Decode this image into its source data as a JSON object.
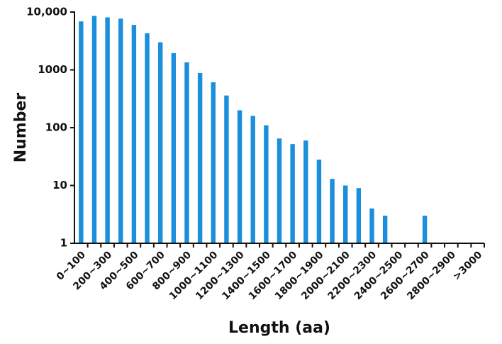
{
  "chart_data": {
    "type": "bar",
    "x_label": "Length (aa)",
    "y_label": "Number",
    "categories": [
      "0~100",
      null,
      "200~300",
      null,
      "400~500",
      null,
      "600~700",
      null,
      "800~900",
      null,
      "1000~1100",
      null,
      "1200~1300",
      null,
      "1400~1500",
      null,
      "1600~1700",
      null,
      "1800~1900",
      null,
      "2000~2100",
      null,
      "2200~2300",
      null,
      "2400~2500",
      null,
      "2600~2700",
      null,
      "2800~2900",
      null,
      ">3000"
    ],
    "values": [
      6900,
      8600,
      8100,
      7700,
      6000,
      4300,
      3000,
      1950,
      1350,
      880,
      610,
      360,
      200,
      160,
      110,
      65,
      52,
      60,
      28,
      13,
      10,
      9,
      4,
      3,
      null,
      null,
      3,
      null,
      null,
      null,
      null
    ],
    "color": "#1a8fdc",
    "log": true,
    "ylim": [
      1,
      10000
    ],
    "yticks": [
      1,
      10,
      100,
      1000,
      {
        "value": 10000,
        "label": "10,000"
      }
    ]
  }
}
